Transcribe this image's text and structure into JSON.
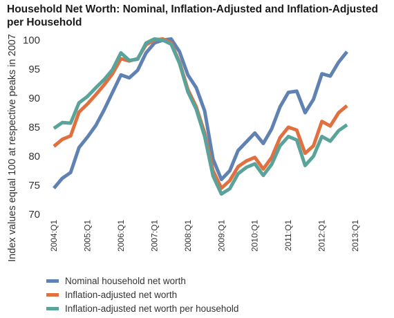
{
  "title": "Household Net Worth: Nominal, Inflation-Adjusted and Inflation-Adjusted per Household",
  "chart_data": {
    "type": "line",
    "title": "Household Net Worth: Nominal, Inflation-Adjusted and Inflation-Adjusted per Household",
    "ylabel": "Index values equal 100 at respective peaks in 2007",
    "xlabel": "",
    "ylim": [
      70,
      100
    ],
    "yticks": [
      70,
      75,
      80,
      85,
      90,
      95,
      100
    ],
    "xtick_labels": [
      "2004:Q1",
      "2005:Q1",
      "2006:Q1",
      "2007:Q1",
      "2008:Q1",
      "2009:Q1",
      "2010:Q1",
      "2011:Q1",
      "2012:Q1",
      "2013:Q1"
    ],
    "grid": false,
    "legend_position": "bottom-left",
    "series": [
      {
        "name": "Nominal household net worth",
        "color": "#5f82b3",
        "values": [
          74.5,
          76.2,
          77.2,
          81.5,
          83.3,
          85.3,
          88.0,
          91.0,
          94.0,
          93.5,
          94.8,
          97.8,
          99.5,
          100.0,
          100.2,
          98.0,
          94.0,
          91.8,
          87.8,
          79.5,
          76.0,
          77.5,
          81.0,
          82.5,
          84.0,
          82.2,
          84.7,
          88.5,
          91.0,
          91.2,
          87.5,
          89.8,
          94.2,
          93.8,
          96.2,
          98.0
        ]
      },
      {
        "name": "Inflation-adjusted net worth",
        "color": "#e07040",
        "values": [
          81.7,
          82.9,
          83.5,
          87.6,
          89.0,
          90.6,
          92.3,
          94.2,
          96.8,
          96.4,
          96.8,
          99.2,
          100.0,
          100.2,
          99.5,
          96.2,
          91.5,
          88.5,
          84.0,
          77.5,
          74.5,
          75.8,
          78.2,
          79.2,
          79.8,
          77.8,
          79.8,
          83.2,
          85.0,
          84.5,
          80.5,
          81.8,
          86.0,
          85.2,
          87.5,
          88.7
        ]
      },
      {
        "name": "Inflation-adjusted net worth per household",
        "color": "#5aa39a",
        "values": [
          84.8,
          85.8,
          85.7,
          89.2,
          90.3,
          91.8,
          93.2,
          94.9,
          97.8,
          96.5,
          96.7,
          99.5,
          100.2,
          100.0,
          99.3,
          96.0,
          91.1,
          88.1,
          83.4,
          76.6,
          73.5,
          74.4,
          77.0,
          78.1,
          78.7,
          76.7,
          78.6,
          81.8,
          83.4,
          82.8,
          78.4,
          80.0,
          83.4,
          82.6,
          84.4,
          85.4
        ]
      }
    ]
  }
}
